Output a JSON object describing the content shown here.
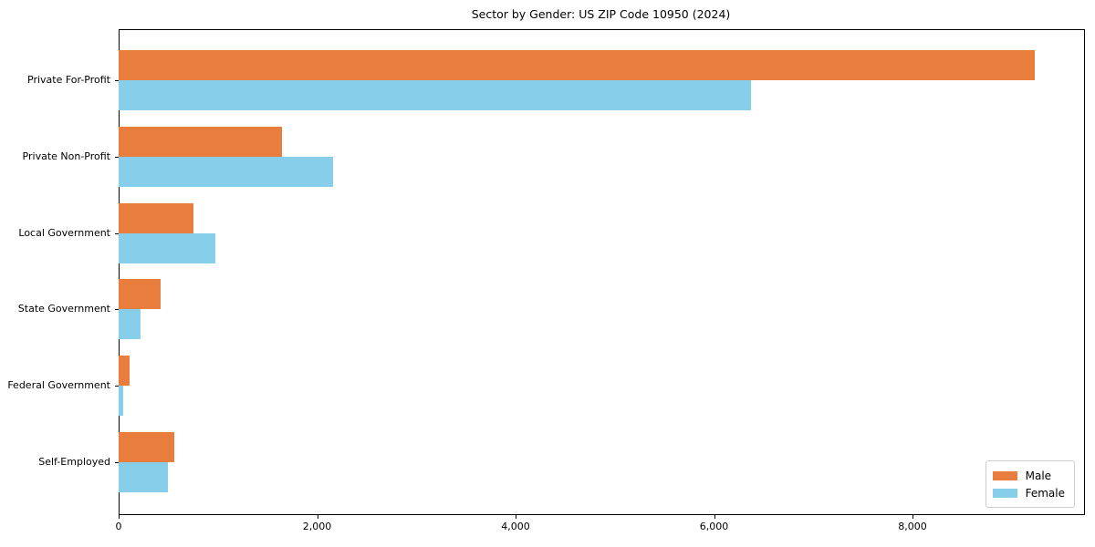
{
  "chart_data": {
    "type": "bar",
    "orientation": "horizontal",
    "title": "Sector by Gender: US ZIP Code 10950 (2024)",
    "categories": [
      "Private For-Profit",
      "Private Non-Profit",
      "Local Government",
      "State Government",
      "Federal Government",
      "Self-Employed"
    ],
    "series": [
      {
        "name": "Male",
        "color": "#e87d3e",
        "values": [
          9230,
          1650,
          755,
          425,
          110,
          560
        ]
      },
      {
        "name": "Female",
        "color": "#87ceeb",
        "values": [
          6370,
          2160,
          975,
          220,
          50,
          500
        ]
      }
    ],
    "xlabel": "",
    "ylabel": "",
    "xlim": [
      0,
      9720
    ],
    "xticks": [
      0,
      2000,
      4000,
      6000,
      8000
    ],
    "xtick_labels": [
      "0",
      "2,000",
      "4,000",
      "6,000",
      "8,000"
    ],
    "grid": false,
    "legend_position": "lower right",
    "background_color": "#ffffff",
    "spine_color": "#000000"
  }
}
